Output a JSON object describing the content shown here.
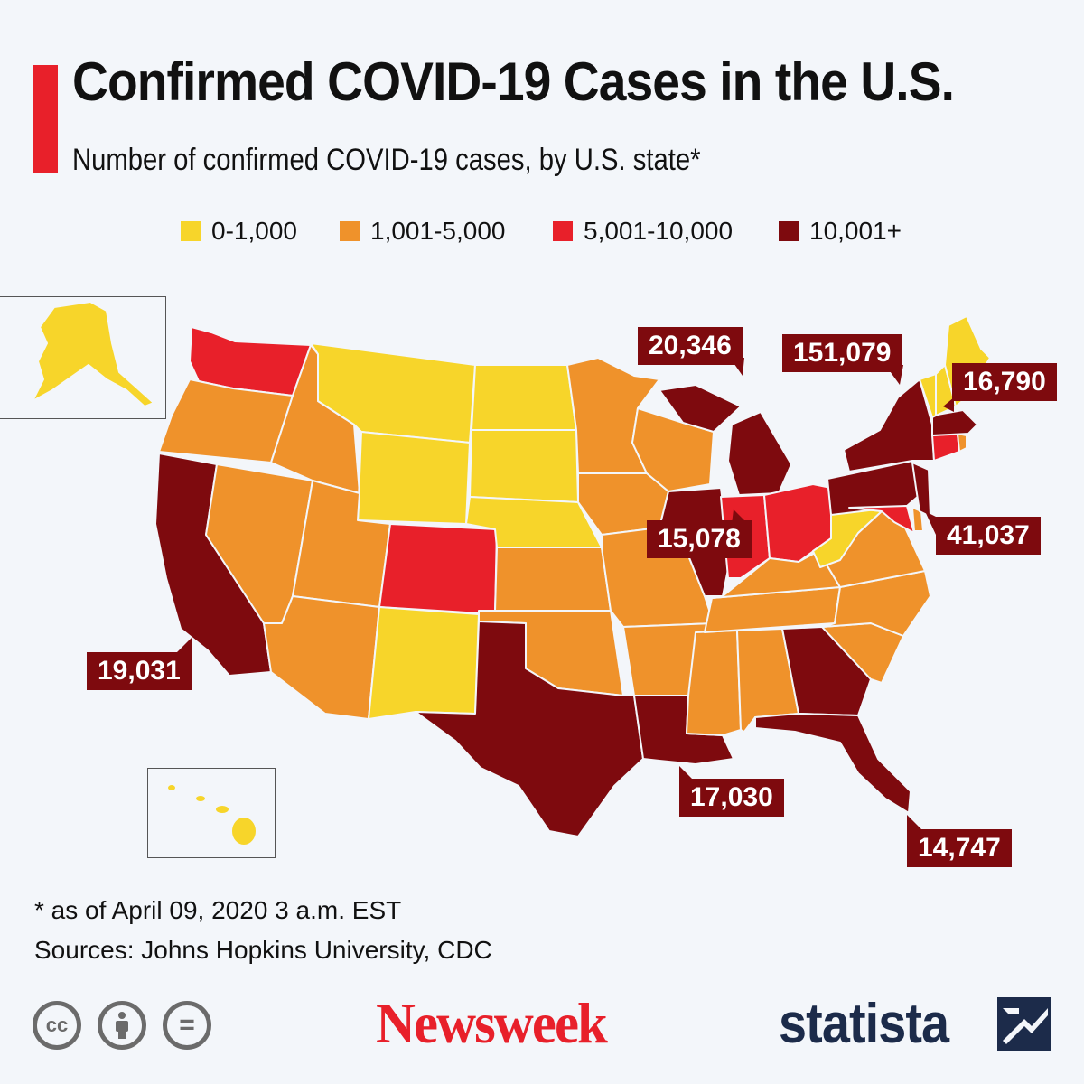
{
  "header": {
    "title": "Confirmed COVID-19 Cases in the U.S.",
    "subtitle": "Number of confirmed COVID-19 cases, by U.S. state*",
    "accent_color": "#e8202a"
  },
  "legend": [
    {
      "label": "0-1,000",
      "color": "#f7d52a"
    },
    {
      "label": "1,001-5,000",
      "color": "#ef922b"
    },
    {
      "label": "5,001-10,000",
      "color": "#e8202a"
    },
    {
      "label": "10,001+",
      "color": "#7e0a0e"
    }
  ],
  "callouts": [
    {
      "state": "Michigan",
      "value": "20,346"
    },
    {
      "state": "New York",
      "value": "151,079"
    },
    {
      "state": "Massachusetts",
      "value": "16,790"
    },
    {
      "state": "Illinois",
      "value": "15,078"
    },
    {
      "state": "New Jersey",
      "value": "41,037"
    },
    {
      "state": "California",
      "value": "19,031"
    },
    {
      "state": "Louisiana",
      "value": "17,030"
    },
    {
      "state": "Florida",
      "value": "14,747"
    }
  ],
  "footer": {
    "footnote": "* as of April 09, 2020 3 a.m. EST",
    "sources": "Sources: Johns Hopkins University, CDC",
    "license_icons": [
      "creative-commons-icon",
      "attribution-icon",
      "no-derivatives-icon"
    ],
    "cc_label": "cc",
    "equals_label": "=",
    "newsweek_logo": "Newsweek",
    "newsweek_color": "#e8202a",
    "statista_logo": "statista",
    "statista_color": "#1c2b4a"
  }
}
